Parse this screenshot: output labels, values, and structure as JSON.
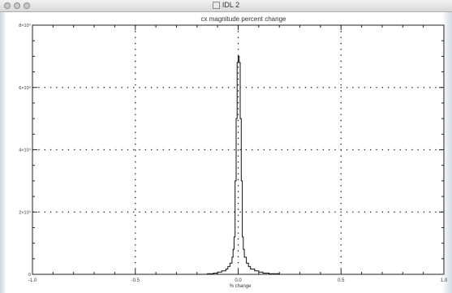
{
  "window": {
    "title": "IDL 2"
  },
  "chart_data": {
    "type": "line",
    "title": "cx magnitude percent change",
    "xlabel": "% change",
    "ylabel": "",
    "xlim": [
      -1.0,
      1.0
    ],
    "ylim": [
      0,
      80000
    ],
    "grid": true,
    "x_ticks": [
      -1.0,
      -0.5,
      0.0,
      0.5,
      1.0
    ],
    "x_tick_labels": [
      "-1.0",
      "-0.5",
      "0.0",
      "0.5",
      "1.0"
    ],
    "y_ticks": [
      0,
      20000,
      40000,
      60000,
      80000
    ],
    "y_tick_labels": [
      "0",
      "2×10⁴",
      "4×10⁴",
      "6×10⁴",
      "8×10⁴"
    ],
    "series": [
      {
        "x": [
          -0.2,
          -0.15,
          -0.12,
          -0.1,
          -0.08,
          -0.06,
          -0.05,
          -0.04,
          -0.03,
          -0.025,
          -0.02,
          -0.015,
          -0.01,
          -0.005,
          0.0,
          0.005,
          0.01,
          0.015,
          0.02,
          0.025,
          0.03,
          0.04,
          0.05,
          0.06,
          0.08,
          0.1,
          0.12,
          0.15,
          0.2
        ],
        "y": [
          0,
          200,
          400,
          700,
          1100,
          1700,
          2500,
          3600,
          5500,
          8000,
          12000,
          30000,
          50000,
          68000,
          70000,
          68000,
          50000,
          30000,
          12000,
          8000,
          5500,
          3600,
          2500,
          1700,
          1100,
          700,
          400,
          200,
          0
        ]
      }
    ]
  }
}
